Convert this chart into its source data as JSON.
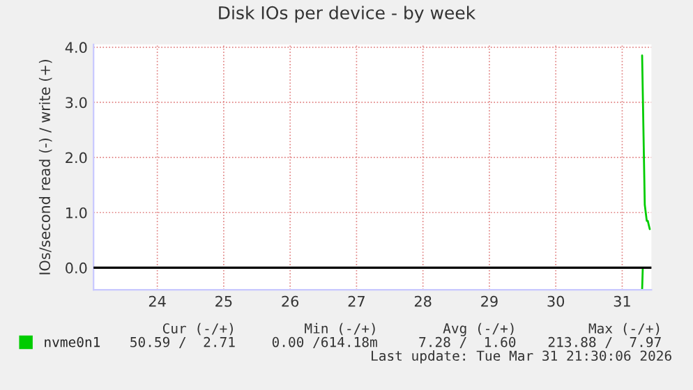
{
  "chart_data": {
    "type": "line",
    "title": "Disk IOs per device - by week",
    "ylabel": "IOs/second read (-) / write (+)",
    "series": [
      {
        "name": "nvme0n1",
        "color": "#00cc00",
        "x": [
          31.8,
          31.84,
          31.87,
          31.885,
          31.915
        ],
        "values": [
          3.85,
          1.14,
          0.85,
          0.85,
          0.7
        ]
      },
      {
        "color": "#00cc00",
        "x": [
          31.8,
          31.81
        ],
        "values": [
          -0.4,
          0
        ]
      }
    ],
    "xlim": [
      23.54,
      31.94
    ],
    "xticks": [
      {
        "value": 24.5,
        "label": "24"
      },
      {
        "value": 25.5,
        "label": "25"
      },
      {
        "value": 26.5,
        "label": "26"
      },
      {
        "value": 27.5,
        "label": "27"
      },
      {
        "value": 28.5,
        "label": "28"
      },
      {
        "value": 29.5,
        "label": "29"
      },
      {
        "value": 30.5,
        "label": "30"
      },
      {
        "value": 31.5,
        "label": "31"
      }
    ],
    "ylim": [
      -0.4,
      4.05
    ],
    "yticks": [
      {
        "value": 0,
        "label": "0.0"
      },
      {
        "value": 1,
        "label": "1.0"
      },
      {
        "value": 2,
        "label": "2.0"
      },
      {
        "value": 3,
        "label": "3.0"
      },
      {
        "value": 4,
        "label": "4.0"
      }
    ],
    "ref_lines": [
      {
        "axis": "y",
        "value": 0,
        "color": "#000000"
      }
    ],
    "grid": true,
    "legend": "bottom left",
    "annotations": [
      "Cur (-/+)",
      "Min (-/+)",
      "Avg (-/+)",
      "Max (-/+)",
      "50.59 /  2.71",
      "0.00 /614.18m",
      "7.28 /  1.60",
      "213.88 /  7.97",
      "Last update: Tue Mar 31 21:30:06 2026"
    ]
  }
}
